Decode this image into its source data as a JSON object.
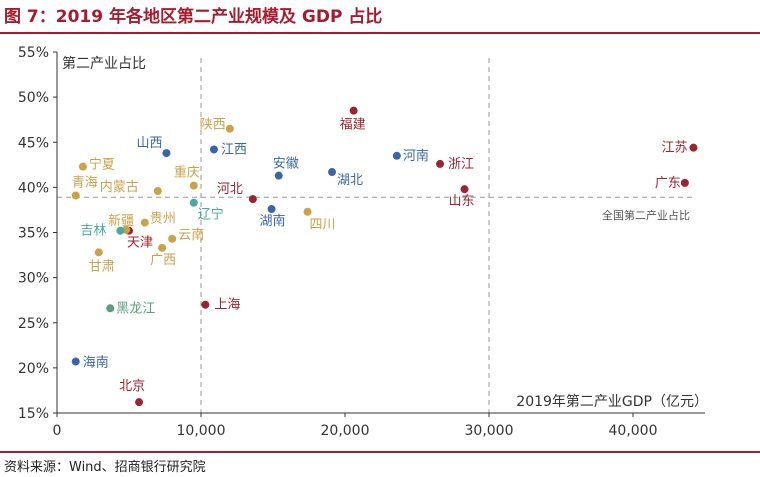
{
  "figure": {
    "title": "图 7：2019 年各地区第二产业规模及 GDP 占比",
    "source": "资料来源：Wind、招商银行研究院"
  },
  "colors": {
    "title": "#a61c2e",
    "red": "#9b2430",
    "blue": "#3a66a7",
    "gold": "#c9a24a",
    "teal": "#4ba8a0",
    "green": "#5a9e7a",
    "axis": "#333333",
    "refline": "#999999"
  },
  "chart_data": {
    "type": "scatter",
    "title": "",
    "xlabel": "2019年第二产业GDP（亿元）",
    "ylabel": "第二产业占比",
    "xlim": [
      0,
      45000
    ],
    "ylim": [
      15,
      55
    ],
    "xticks": [
      0,
      10000,
      20000,
      30000,
      40000
    ],
    "xtick_labels": [
      "0",
      "10,000",
      "20,000",
      "30,000",
      "40,000"
    ],
    "yticks": [
      15,
      20,
      25,
      30,
      35,
      40,
      45,
      50,
      55
    ],
    "ytick_labels": [
      "15%",
      "20%",
      "25%",
      "30%",
      "35%",
      "40%",
      "45%",
      "50%",
      "55%"
    ],
    "ref_x": [
      10000,
      30000
    ],
    "ref_y": 38.9,
    "ref_y_label": "全国第二产业占比",
    "points": [
      {
        "name": "江苏",
        "x": 44200,
        "y": 44.4,
        "color": "red"
      },
      {
        "name": "广东",
        "x": 43600,
        "y": 40.5,
        "color": "red"
      },
      {
        "name": "山东",
        "x": 28300,
        "y": 39.8,
        "color": "red"
      },
      {
        "name": "浙江",
        "x": 26600,
        "y": 42.6,
        "color": "red"
      },
      {
        "name": "河南",
        "x": 23600,
        "y": 43.5,
        "color": "blue"
      },
      {
        "name": "福建",
        "x": 20600,
        "y": 48.5,
        "color": "red"
      },
      {
        "name": "湖北",
        "x": 19100,
        "y": 41.7,
        "color": "blue"
      },
      {
        "name": "四川",
        "x": 17400,
        "y": 37.3,
        "color": "gold"
      },
      {
        "name": "湖南",
        "x": 14900,
        "y": 37.6,
        "color": "blue"
      },
      {
        "name": "安徽",
        "x": 15400,
        "y": 41.3,
        "color": "blue"
      },
      {
        "name": "河北",
        "x": 13600,
        "y": 38.7,
        "color": "red"
      },
      {
        "name": "上海",
        "x": 10300,
        "y": 27.0,
        "color": "red"
      },
      {
        "name": "陕西",
        "x": 12000,
        "y": 46.5,
        "color": "gold"
      },
      {
        "name": "江西",
        "x": 10900,
        "y": 44.2,
        "color": "blue"
      },
      {
        "name": "辽宁",
        "x": 9500,
        "y": 38.3,
        "color": "teal"
      },
      {
        "name": "重庆",
        "x": 9500,
        "y": 40.2,
        "color": "gold"
      },
      {
        "name": "云南",
        "x": 8000,
        "y": 34.3,
        "color": "gold"
      },
      {
        "name": "广西",
        "x": 7300,
        "y": 33.3,
        "color": "gold"
      },
      {
        "name": "内蒙古",
        "x": 7000,
        "y": 39.6,
        "color": "gold"
      },
      {
        "name": "贵州",
        "x": 6100,
        "y": 36.1,
        "color": "gold"
      },
      {
        "name": "山西",
        "x": 7600,
        "y": 43.8,
        "color": "blue"
      },
      {
        "name": "天津",
        "x": 5000,
        "y": 35.2,
        "color": "red"
      },
      {
        "name": "新疆",
        "x": 4800,
        "y": 35.3,
        "color": "gold"
      },
      {
        "name": "吉林",
        "x": 4400,
        "y": 35.2,
        "color": "teal"
      },
      {
        "name": "黑龙江",
        "x": 3700,
        "y": 26.6,
        "color": "green"
      },
      {
        "name": "甘肃",
        "x": 2900,
        "y": 32.8,
        "color": "gold"
      },
      {
        "name": "宁夏",
        "x": 1800,
        "y": 42.3,
        "color": "gold"
      },
      {
        "name": "青海",
        "x": 1300,
        "y": 39.1,
        "color": "gold"
      },
      {
        "name": "海南",
        "x": 1300,
        "y": 20.7,
        "color": "blue"
      },
      {
        "name": "北京",
        "x": 5700,
        "y": 16.2,
        "color": "red"
      }
    ]
  }
}
